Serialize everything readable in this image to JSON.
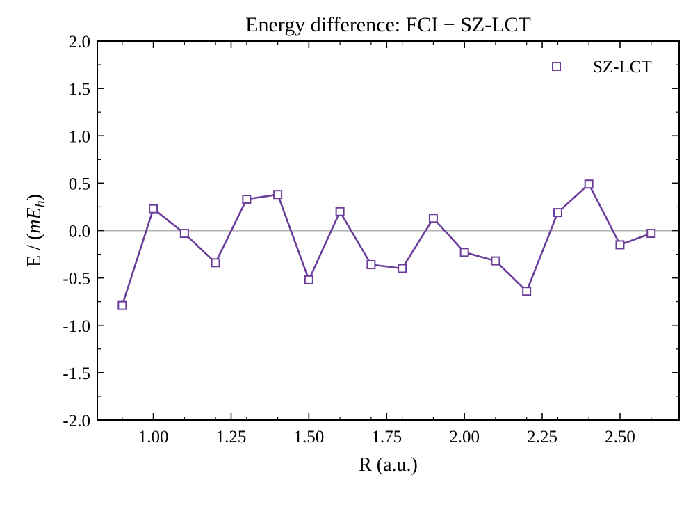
{
  "chart_data": {
    "type": "line",
    "title": "Energy difference: FCI − SZ-LCT",
    "xlabel": "R (a.u.)",
    "ylabel_prefix": "E / (",
    "ylabel_math_m": "mE",
    "ylabel_math_sub": "h",
    "ylabel_suffix": ")",
    "xlim": [
      0.82,
      2.69
    ],
    "ylim": [
      -2.0,
      2.0
    ],
    "x_ticks": [
      1.0,
      1.25,
      1.5,
      1.75,
      2.0,
      2.25,
      2.5
    ],
    "x_tick_labels": [
      "1.00",
      "1.25",
      "1.50",
      "1.75",
      "2.00",
      "2.25",
      "2.50"
    ],
    "x_minor_ticks": [
      0.9,
      1.1,
      1.2,
      1.3,
      1.4,
      1.6,
      1.7,
      1.8,
      1.9,
      2.1,
      2.2,
      2.3,
      2.4,
      2.6
    ],
    "y_ticks": [
      -2.0,
      -1.5,
      -1.0,
      -0.5,
      0.0,
      0.5,
      1.0,
      1.5,
      2.0
    ],
    "y_tick_labels": [
      "-2.0",
      "-1.5",
      "-1.0",
      "-0.5",
      "0.0",
      "0.5",
      "1.0",
      "1.5",
      "2.0"
    ],
    "y_minor_ticks": [
      -1.75,
      -1.25,
      -0.75,
      -0.25,
      0.25,
      0.75,
      1.25,
      1.75
    ],
    "reference_line_y": 0.0,
    "legend_position": "top-right",
    "grid": false,
    "colors": {
      "series": "#6a3d9a",
      "reference": "#b0b0b0",
      "axes": "#000000"
    },
    "series": [
      {
        "name": "SZ-LCT",
        "marker": "square-open",
        "x": [
          0.9,
          1.0,
          1.1,
          1.2,
          1.3,
          1.4,
          1.5,
          1.6,
          1.7,
          1.8,
          1.9,
          2.0,
          2.1,
          2.2,
          2.3,
          2.4,
          2.5,
          2.6
        ],
        "values": [
          -0.79,
          0.23,
          -0.03,
          -0.34,
          0.33,
          0.38,
          -0.52,
          0.2,
          -0.36,
          -0.4,
          0.13,
          -0.23,
          -0.32,
          -0.64,
          0.19,
          0.49,
          -0.15,
          -0.03
        ]
      }
    ]
  }
}
